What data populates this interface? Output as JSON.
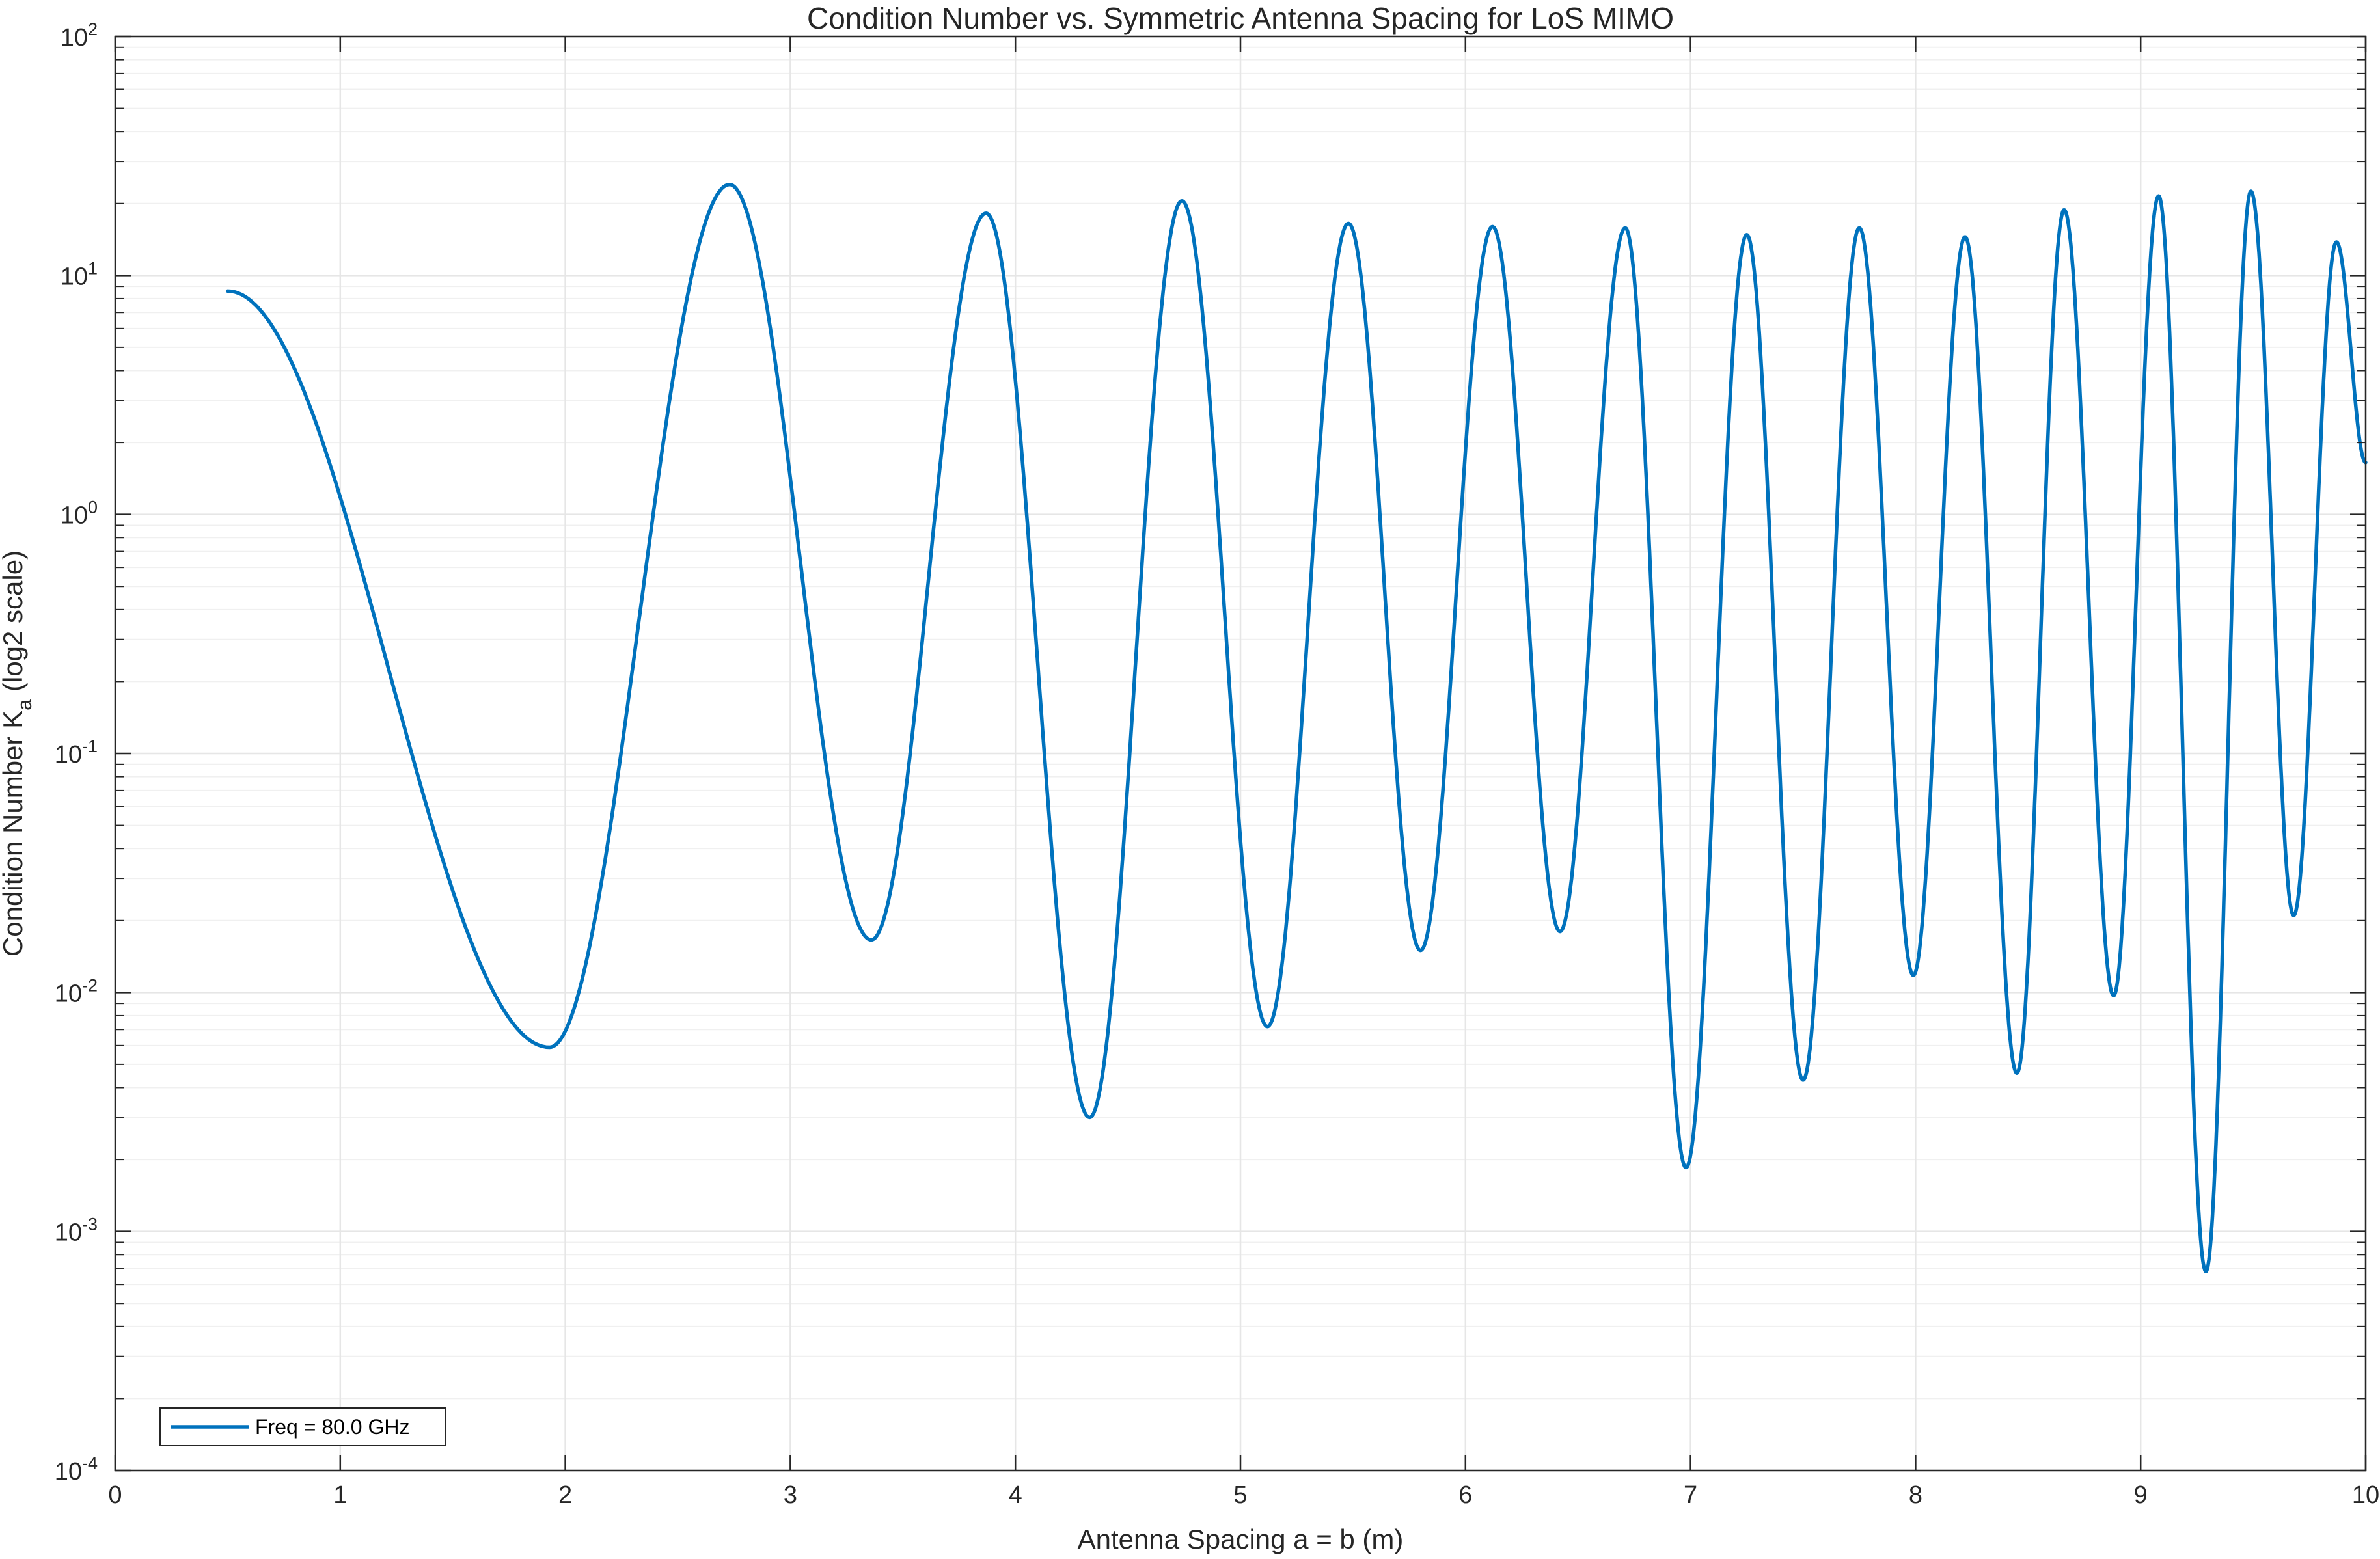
{
  "chart_data": {
    "type": "line",
    "title": "Condition Number vs. Symmetric Antenna Spacing for LoS MIMO",
    "xlabel": "Antenna Spacing a = b (m)",
    "ylabel": {
      "main": "Condition Number K",
      "sub": "a",
      "rest": " (log2 scale)"
    },
    "xlim": [
      0,
      10
    ],
    "ylim": [
      0.0001,
      100
    ],
    "y_scale": "log",
    "grid": true,
    "minor_grid": true,
    "legend_position": "bottom-left",
    "x_ticks": [
      "0",
      "1",
      "2",
      "3",
      "4",
      "5",
      "6",
      "7",
      "8",
      "9",
      "10"
    ],
    "y_ticks": [
      {
        "base": "10",
        "exp": "-4"
      },
      {
        "base": "10",
        "exp": "-3"
      },
      {
        "base": "10",
        "exp": "-2"
      },
      {
        "base": "10",
        "exp": "-1"
      },
      {
        "base": "10",
        "exp": "0"
      },
      {
        "base": "10",
        "exp": "1"
      },
      {
        "base": "10",
        "exp": "2"
      }
    ],
    "colors": {
      "line": "#0072BD",
      "axis": "#262626",
      "grid": "#e6e6e6",
      "minor_grid": "#f0f0f0"
    },
    "series": [
      {
        "name": "Freq = 80.0 GHz",
        "start": [
          0.5,
          8.6
        ],
        "end": [
          10.0,
          1.65
        ],
        "dips": [
          [
            1.93,
            0.0059
          ],
          [
            3.36,
            0.0166
          ],
          [
            4.33,
            0.003
          ],
          [
            5.12,
            0.0072
          ],
          [
            5.8,
            0.015
          ],
          [
            6.42,
            0.018
          ],
          [
            6.98,
            0.00185
          ],
          [
            7.5,
            0.0043
          ],
          [
            7.99,
            0.0118
          ],
          [
            8.45,
            0.0046
          ],
          [
            8.88,
            0.0097
          ],
          [
            9.29,
            0.00068
          ],
          [
            9.68,
            0.021
          ]
        ],
        "peaks": [
          [
            2.73,
            24.0
          ],
          [
            3.87,
            18.2
          ],
          [
            4.74,
            20.5
          ],
          [
            5.48,
            16.5
          ],
          [
            6.12,
            16.0
          ],
          [
            6.71,
            15.8
          ],
          [
            7.25,
            14.8
          ],
          [
            7.75,
            15.8
          ],
          [
            8.22,
            14.5
          ],
          [
            8.66,
            18.8
          ],
          [
            9.08,
            21.5
          ],
          [
            9.49,
            22.5
          ],
          [
            9.87,
            13.8
          ]
        ]
      }
    ]
  }
}
